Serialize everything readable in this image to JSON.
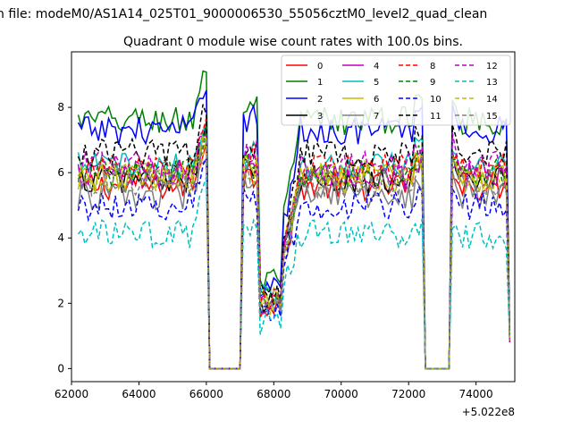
{
  "chart_data": {
    "type": "line",
    "title": "Quadrant 0 module wise count rates with 100.0s bins.",
    "suptitle": "n file: modeM0/AS1A14_025T01_9000006530_55056cztM0_level2_quad_clean",
    "x_offset_label": "+5.022e8",
    "xlim": [
      62000,
      75150
    ],
    "ylim": [
      -0.4,
      9.7
    ],
    "x_ticks": [
      62000,
      64000,
      66000,
      68000,
      70000,
      72000,
      74000
    ],
    "x_tick_labels": [
      "62000",
      "64000",
      "66000",
      "68000",
      "70000",
      "72000",
      "74000"
    ],
    "y_ticks": [
      0,
      2,
      4,
      6,
      8
    ],
    "y_tick_labels": [
      "0",
      "2",
      "4",
      "6",
      "8"
    ],
    "grid": false,
    "legend_position": "upper-right",
    "legend_columns": 4,
    "time_bin": 100,
    "x_start": 62200,
    "x_end": 75000,
    "gaps": [
      [
        66100,
        67000
      ],
      [
        72500,
        73200
      ]
    ],
    "series": [
      {
        "name": "0",
        "color": "#ff0000",
        "dash": "solid",
        "level": 5.6,
        "peak": 7.0
      },
      {
        "name": "1",
        "color": "#008000",
        "dash": "solid",
        "level": 7.6,
        "peak": 9.3
      },
      {
        "name": "2",
        "color": "#0000ff",
        "dash": "solid",
        "level": 7.3,
        "peak": 8.9
      },
      {
        "name": "3",
        "color": "#000000",
        "dash": "solid",
        "level": 5.8,
        "peak": 7.3
      },
      {
        "name": "4",
        "color": "#bf00bf",
        "dash": "solid",
        "level": 5.9,
        "peak": 7.2
      },
      {
        "name": "5",
        "color": "#00bfbf",
        "dash": "solid",
        "level": 6.2,
        "peak": 7.6
      },
      {
        "name": "6",
        "color": "#bfbf00",
        "dash": "solid",
        "level": 5.9,
        "peak": 7.1
      },
      {
        "name": "7",
        "color": "#808080",
        "dash": "solid",
        "level": 5.3,
        "peak": 6.8
      },
      {
        "name": "8",
        "color": "#ff0000",
        "dash": "dashed",
        "level": 6.1,
        "peak": 7.4
      },
      {
        "name": "9",
        "color": "#008000",
        "dash": "dashed",
        "level": 6.0,
        "peak": 7.3
      },
      {
        "name": "10",
        "color": "#0000ff",
        "dash": "dashed",
        "level": 5.0,
        "peak": 6.5
      },
      {
        "name": "11",
        "color": "#000000",
        "dash": "dashed",
        "level": 6.6,
        "peak": 8.0
      },
      {
        "name": "12",
        "color": "#bf00bf",
        "dash": "dashed",
        "level": 6.2,
        "peak": 7.5
      },
      {
        "name": "13",
        "color": "#00bfbf",
        "dash": "dashed",
        "level": 4.1,
        "peak": 5.6
      },
      {
        "name": "14",
        "color": "#bfbf00",
        "dash": "dashed",
        "level": 5.8,
        "peak": 7.0
      },
      {
        "name": "15",
        "color": "#808080",
        "dash": "dashed",
        "level": 5.7,
        "peak": 7.1
      }
    ]
  }
}
